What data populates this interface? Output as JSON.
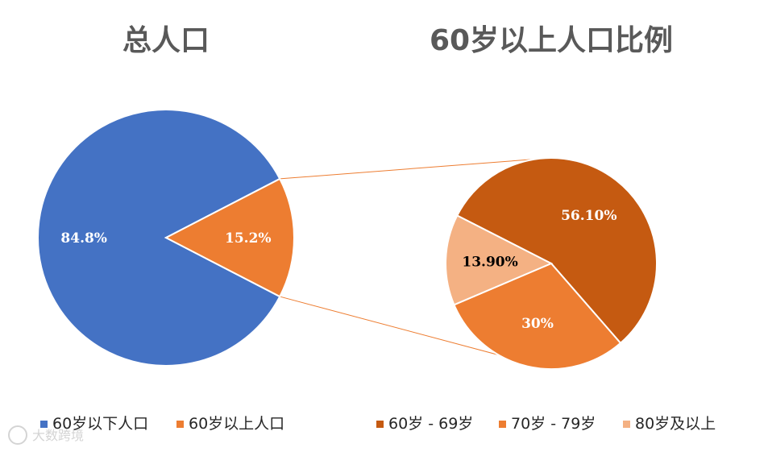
{
  "chart_data": [
    {
      "type": "pie",
      "title": "总人口",
      "slices": [
        {
          "label": "60岁以下人口",
          "value": 84.8,
          "display": "84.8%",
          "color": "#4472c4",
          "label_color": "#ffffff"
        },
        {
          "label": "60岁以上人口",
          "value": 15.2,
          "display": "15.2%",
          "color": "#ed7d31",
          "label_color": "#ffffff"
        }
      ],
      "legend_position": "bottom"
    },
    {
      "type": "pie",
      "title": "60岁以上人口比例",
      "slices": [
        {
          "label": "60岁 - 69岁",
          "value": 56.1,
          "display": "56.10%",
          "color": "#c55a11",
          "label_color": "#ffffff"
        },
        {
          "label": "70岁 - 79岁",
          "value": 30,
          "display": "30%",
          "color": "#ed7d31",
          "label_color": "#ffffff"
        },
        {
          "label": "80岁及以上",
          "value": 13.9,
          "display": "13.90%",
          "color": "#f4b183",
          "label_color": "#000000"
        }
      ],
      "legend_position": "bottom"
    }
  ],
  "watermark": "大数跨境",
  "connector_color": "#ed7d31"
}
